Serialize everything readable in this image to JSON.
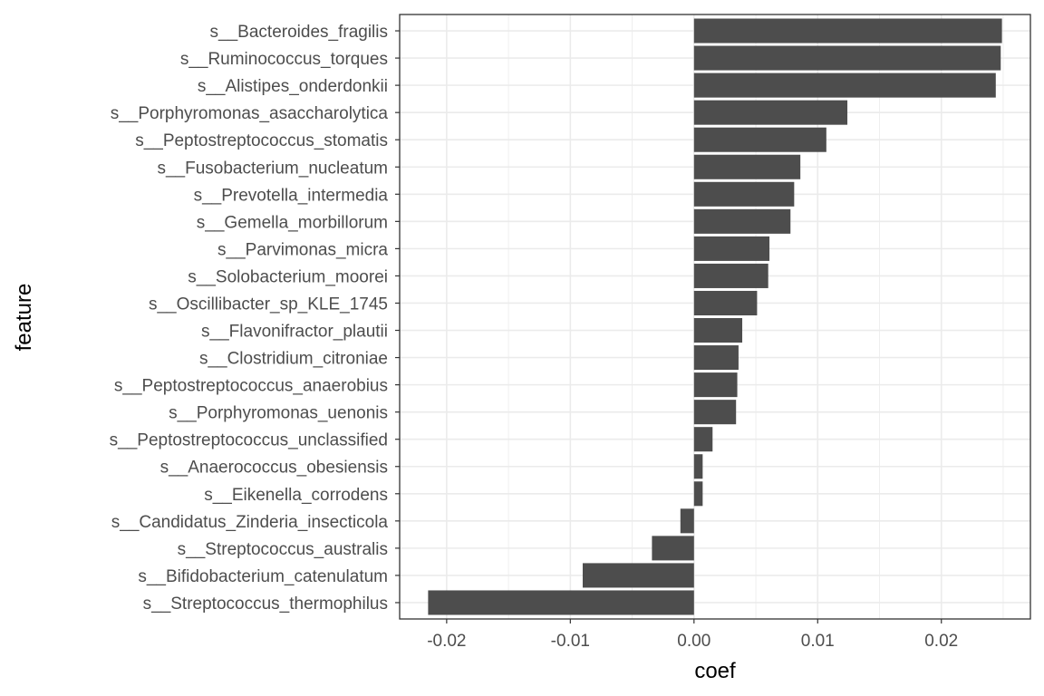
{
  "chart_data": {
    "type": "bar",
    "orientation": "horizontal",
    "xlabel": "coef",
    "ylabel": "feature",
    "xlim": [
      -0.0238,
      0.0272
    ],
    "x_ticks": [
      -0.02,
      -0.01,
      0.0,
      0.01,
      0.02
    ],
    "x_tick_labels": [
      "-0.02",
      "-0.01",
      "0.00",
      "0.01",
      "0.02"
    ],
    "grid": true,
    "bar_color": "#4d4d4d",
    "categories": [
      "s__Bacteroides_fragilis",
      "s__Ruminococcus_torques",
      "s__Alistipes_onderdonkii",
      "s__Porphyromonas_asaccharolytica",
      "s__Peptostreptococcus_stomatis",
      "s__Fusobacterium_nucleatum",
      "s__Prevotella_intermedia",
      "s__Gemella_morbillorum",
      "s__Parvimonas_micra",
      "s__Solobacterium_moorei",
      "s__Oscillibacter_sp_KLE_1745",
      "s__Flavonifractor_plautii",
      "s__Clostridium_citroniae",
      "s__Peptostreptococcus_anaerobius",
      "s__Porphyromonas_uenonis",
      "s__Peptostreptococcus_unclassified",
      "s__Anaerococcus_obesiensis",
      "s__Eikenella_corrodens",
      "s__Candidatus_Zinderia_insecticola",
      "s__Streptococcus_australis",
      "s__Bifidobacterium_catenulatum",
      "s__Streptococcus_thermophilus"
    ],
    "values": [
      0.0249,
      0.0248,
      0.0244,
      0.0124,
      0.0107,
      0.0086,
      0.0081,
      0.0078,
      0.0061,
      0.006,
      0.0051,
      0.0039,
      0.0036,
      0.0035,
      0.0034,
      0.0015,
      0.0007,
      0.0007,
      -0.0011,
      -0.0034,
      -0.009,
      -0.0215
    ]
  }
}
